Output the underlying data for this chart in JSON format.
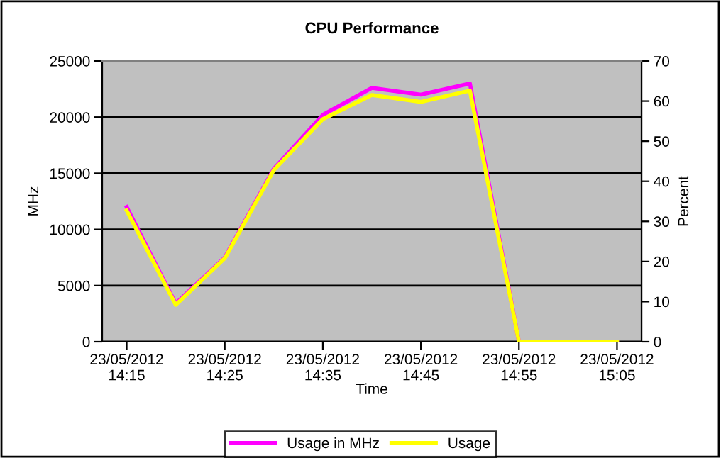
{
  "chart_data": {
    "type": "line",
    "title": "CPU Performance",
    "xlabel": "Time",
    "ylabel": "MHz",
    "y2label": "Percent",
    "x": [
      "2012-05-23T14:15",
      "2012-05-23T14:20",
      "2012-05-23T14:25",
      "2012-05-23T14:30",
      "2012-05-23T14:35",
      "2012-05-23T14:40",
      "2012-05-23T14:45",
      "2012-05-23T14:50",
      "2012-05-23T14:55",
      "2012-05-23T15:00",
      "2012-05-23T15:05"
    ],
    "xlim": [
      "2012-05-23T14:12:30",
      "2012-05-23T15:07:30"
    ],
    "xticks": [
      {
        "value": "2012-05-23T14:15",
        "label": "23/05/2012\n14:15"
      },
      {
        "value": "2012-05-23T14:25",
        "label": "23/05/2012\n14:25"
      },
      {
        "value": "2012-05-23T14:35",
        "label": "23/05/2012\n14:35"
      },
      {
        "value": "2012-05-23T14:45",
        "label": "23/05/2012\n14:45"
      },
      {
        "value": "2012-05-23T14:55",
        "label": "23/05/2012\n14:55"
      },
      {
        "value": "2012-05-23T15:05",
        "label": "23/05/2012\n15:05"
      }
    ],
    "ylim": [
      0,
      25000
    ],
    "yticks": [
      0,
      5000,
      10000,
      15000,
      20000,
      25000
    ],
    "y2lim": [
      0,
      70
    ],
    "y2ticks": [
      0,
      10,
      20,
      30,
      40,
      50,
      60,
      70
    ],
    "series": [
      {
        "name": "Usage in MHz",
        "color": "#ff00ff",
        "values": [
          12000,
          3400,
          7500,
          15400,
          20200,
          22600,
          22000,
          23000,
          0,
          0,
          0
        ]
      },
      {
        "name": "Usage",
        "color": "#ffff00",
        "axis": "y2",
        "values": [
          32.7,
          9.2,
          20.8,
          42.8,
          55.5,
          61.5,
          59.8,
          62.6,
          0,
          0,
          0
        ]
      }
    ],
    "grid": "y",
    "legend": "bottom",
    "marker": "none",
    "line_style": "solid"
  }
}
